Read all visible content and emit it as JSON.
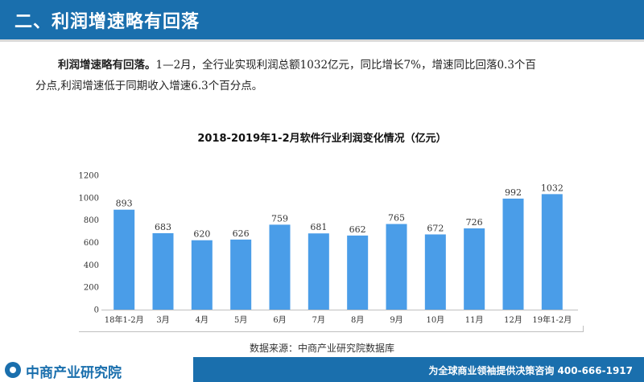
{
  "header": {
    "title": "二、利润增速略有回落"
  },
  "paragraph": {
    "lead": "利润增速略有回落。",
    "line1_rest": "1—2月，全行业实现利润总额1032亿元，同比增长7%，增速同比回落0.3个百",
    "line2": "分点,利润增速低于同期收入增速6.3个百分点。"
  },
  "chart_data": {
    "type": "bar",
    "title": "2018-2019年1-2月软件行业利润变化情况（亿元）",
    "categories": [
      "18年1-2月",
      "3月",
      "4月",
      "5月",
      "6月",
      "7月",
      "8月",
      "9月",
      "10月",
      "11月",
      "12月",
      "19年1-2月"
    ],
    "values": [
      893,
      683,
      620,
      626,
      759,
      681,
      662,
      765,
      672,
      726,
      992,
      1032
    ],
    "ylim": [
      0,
      1200
    ],
    "yticks": [
      0,
      200,
      400,
      600,
      800,
      1000,
      1200
    ],
    "grid": false,
    "bar_color": "#4a9de8"
  },
  "source": "数据来源：中商产业研究院数据库",
  "footer": {
    "logo_text": "中商产业研究院",
    "slogan": "为全球商业领袖提供决策咨询    400-666-1917"
  }
}
